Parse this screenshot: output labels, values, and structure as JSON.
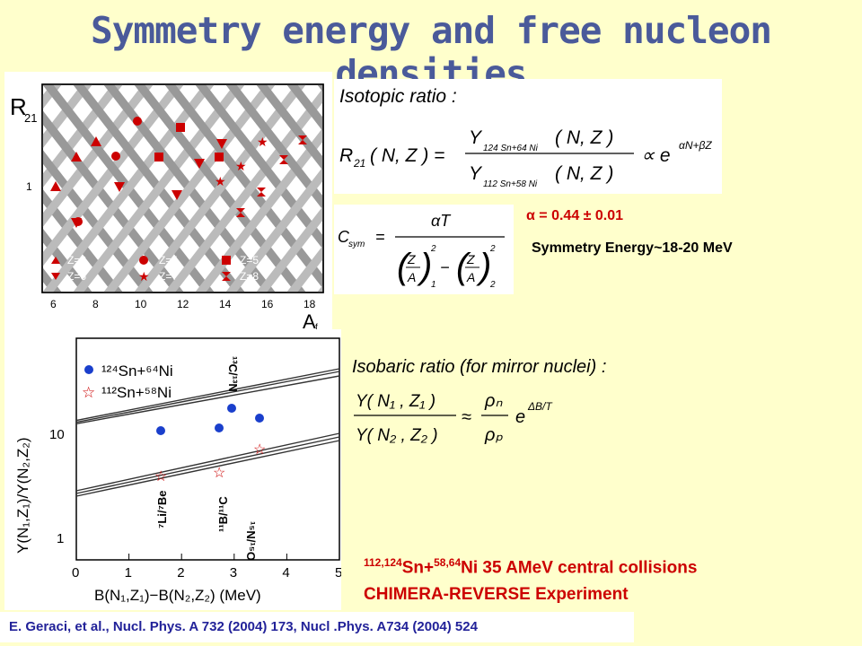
{
  "title": "Symmetry energy and free nucleon densities",
  "top_plot": {
    "ylabel": "R",
    "ylabel_sub": "21",
    "xlabel": "A",
    "xlabel_sub": "f",
    "y_tick": "1",
    "x_ticks": [
      "6",
      "8",
      "10",
      "12",
      "14",
      "16",
      "18"
    ],
    "legend": [
      "Z=3",
      "Z=4",
      "Z=5",
      "Z=6",
      "Z=7",
      "Z=8"
    ]
  },
  "isotopic": {
    "heading": "Isotopic ratio :",
    "lhs": "R",
    "lhs_sub": "21",
    "args": "( N, Z ) =",
    "num_Y": "Y",
    "num_sub": "124 Sn+64 Ni",
    "num_args": "( N, Z )",
    "den_Y": "Y",
    "den_sub": "112 Sn+58 Ni",
    "den_args": "( N, Z )",
    "prop": "∝ e",
    "exp": "αN+βZ"
  },
  "csym": {
    "lhs": "C",
    "lhs_sub": "sym",
    "eq": "=",
    "numerator": "αT",
    "Z": "Z",
    "A": "A",
    "sub1": "1",
    "sub2": "2",
    "sq": "2",
    "minus": "−"
  },
  "alpha_value": "α = 0.44 ± 0.01",
  "symmetry_energy": "Symmetry Energy~18-20 MeV",
  "bottom_plot": {
    "ylabel": "Y(N₁,Z₁)/Y(N₂,Z₂)",
    "xlabel": "B(N₁,Z₁)−B(N₂,Z₂)  (MeV)",
    "y_ticks": [
      "10",
      "1"
    ],
    "x_ticks": [
      "0",
      "1",
      "2",
      "3",
      "4",
      "5"
    ],
    "legend_1": "¹²⁴Sn+⁶⁴Ni",
    "legend_2": "¹¹²Sn+⁵⁸Ni",
    "labels": [
      "⁷Li/⁷Be",
      "¹¹B/¹¹C",
      "¹⁵N/¹⁵O",
      "¹³C/¹³N"
    ]
  },
  "isobaric": {
    "heading": "Isobaric ratio (for mirror nuclei) :",
    "num": "Y( N₁ , Z₁ )",
    "den": "Y( N₂ , Z₂ )",
    "approx": "≈",
    "rho_n": "ρₙ",
    "rho_p": "ρₚ",
    "e": "e",
    "exp": "ΔB/T"
  },
  "collision_line1_sup1": "112,124",
  "collision_line1_a": "Sn+",
  "collision_line1_sup2": "58,64",
  "collision_line1_b": "Ni 35 AMeV central collisions",
  "experiment": "CHIMERA-REVERSE Experiment",
  "reference": "E. Geraci, et al., Nucl. Phys. A 732 (2004) 173, Nucl .Phys. A734 (2004) 524",
  "colors": {
    "title": "#4a5a9a",
    "red": "#cc0000",
    "background": "#ffffcc",
    "reference": "#222299"
  }
}
